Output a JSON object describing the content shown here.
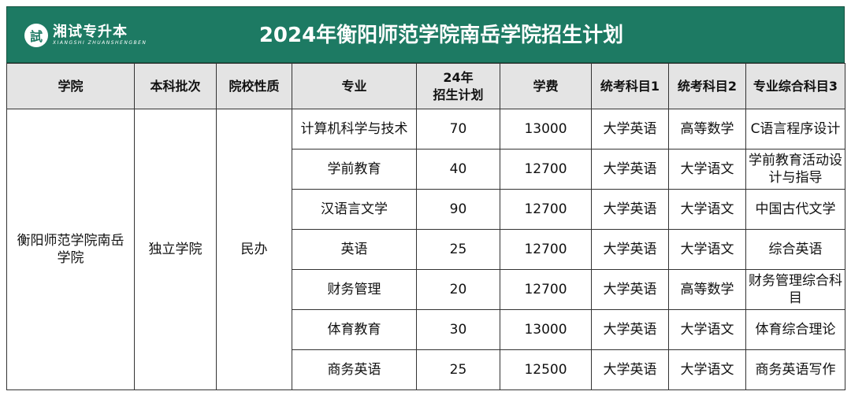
{
  "logo": {
    "name": "湘试专升本",
    "seal_char": "試",
    "pinyin": "XIANGSHI ZHUANSHENGBEN"
  },
  "title": "2024年衡阳师范学院南岳学院招生计划",
  "headers": [
    "学院",
    "本科批次",
    "院校性质",
    "专业",
    "24年\n招生计划",
    "学费",
    "统考科目1",
    "统考科目2",
    "专业综合科目3"
  ],
  "college": "衡阳师范学院南岳学院",
  "batch": "独立学院",
  "nature": "民办",
  "rows": [
    {
      "major": "计算机科学与技术",
      "quota": "70",
      "fee": "13000",
      "subject1": "大学英语",
      "subject2": "高等数学",
      "subject3": "C语言程序设计"
    },
    {
      "major": "学前教育",
      "quota": "40",
      "fee": "12700",
      "subject1": "大学英语",
      "subject2": "大学语文",
      "subject3": "学前教育活动设计与指导"
    },
    {
      "major": "汉语言文学",
      "quota": "90",
      "fee": "12700",
      "subject1": "大学英语",
      "subject2": "大学语文",
      "subject3": "中国古代文学"
    },
    {
      "major": "英语",
      "quota": "25",
      "fee": "12700",
      "subject1": "大学英语",
      "subject2": "大学语文",
      "subject3": "综合英语"
    },
    {
      "major": "财务管理",
      "quota": "20",
      "fee": "12700",
      "subject1": "大学英语",
      "subject2": "高等数学",
      "subject3": "财务管理综合科目"
    },
    {
      "major": "体育教育",
      "quota": "30",
      "fee": "13000",
      "subject1": "大学英语",
      "subject2": "大学语文",
      "subject3": "体育综合理论"
    },
    {
      "major": "商务英语",
      "quota": "25",
      "fee": "12500",
      "subject1": "大学英语",
      "subject2": "大学语文",
      "subject3": "商务英语写作"
    }
  ]
}
